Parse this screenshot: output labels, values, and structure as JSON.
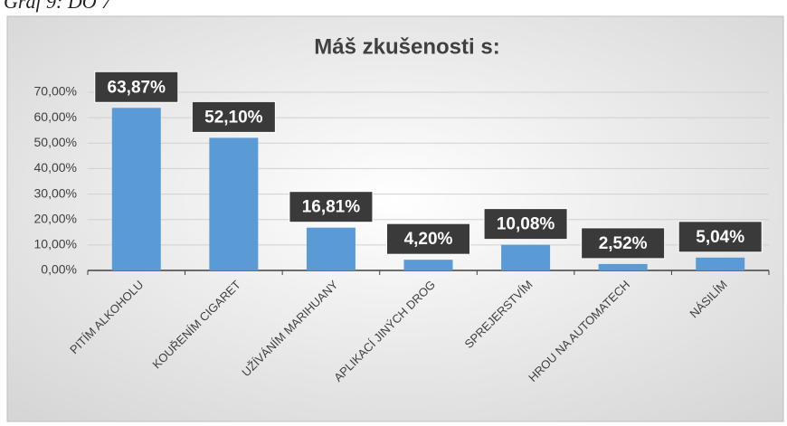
{
  "caption": "Graf 9: DO 7",
  "chart_data": {
    "type": "bar",
    "title": "Máš zkušenosti s:",
    "categories": [
      "PITÍM ALKOHOLU",
      "KOUŘENÍM CIGARET",
      "UŽÍVÁNÍM MARIHUANY",
      "APLIKACÍ JINÝCH DROG",
      "SPREJERSTVÍM",
      "HROU NA AUTOMATECH",
      "NÁSILÍM"
    ],
    "values": [
      63.87,
      52.1,
      16.81,
      4.2,
      10.08,
      2.52,
      5.04
    ],
    "value_labels": [
      "63,87%",
      "52,10%",
      "16,81%",
      "4,20%",
      "10,08%",
      "2,52%",
      "5,04%"
    ],
    "color": "#5b9bd5",
    "ylim": [
      0,
      70
    ],
    "yticks": [
      {
        "value": 0,
        "label": "0,00%"
      },
      {
        "value": 10,
        "label": "10,00%"
      },
      {
        "value": 20,
        "label": "20,00%"
      },
      {
        "value": 30,
        "label": "30,00%"
      },
      {
        "value": 40,
        "label": "40,00%"
      },
      {
        "value": 50,
        "label": "50,00%"
      },
      {
        "value": 60,
        "label": "60,00%"
      },
      {
        "value": 70,
        "label": "70,00%"
      }
    ],
    "grid": true
  }
}
